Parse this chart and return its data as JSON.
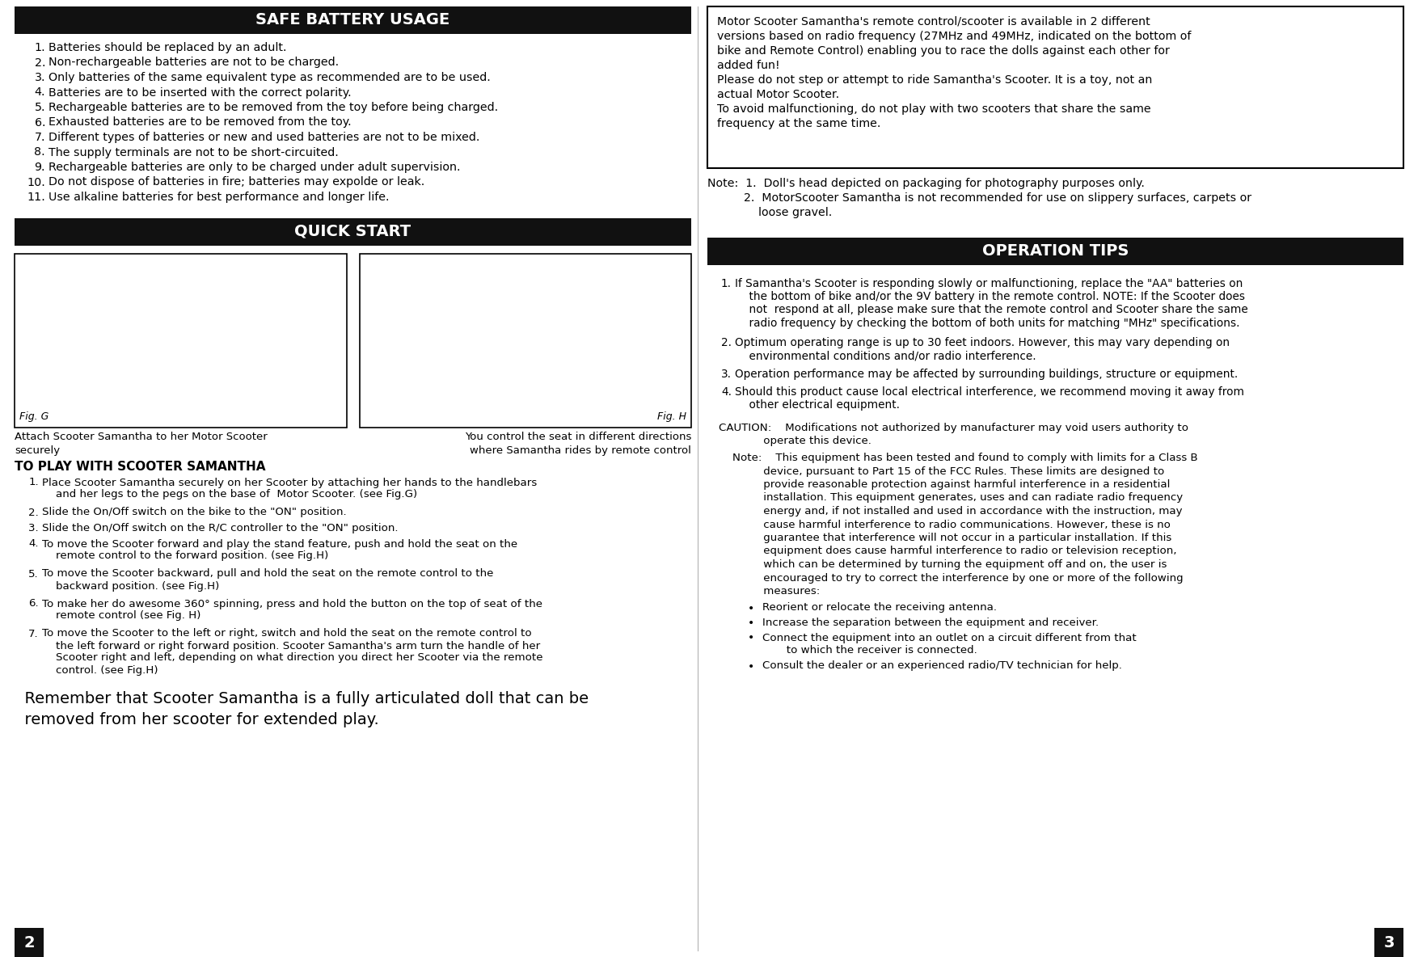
{
  "bg_color": "#ffffff",
  "header_bg": "#111111",
  "header_fg": "#ffffff",
  "body_fg": "#000000",
  "safe_battery_title": "SAFE BATTERY USAGE",
  "safe_battery_items": [
    "Batteries should be replaced by an adult.",
    "Non-rechargeable batteries are not to be charged.",
    "Only batteries of the same equivalent type as recommended are to be used.",
    "Batteries are to be inserted with the correct polarity.",
    "Rechargeable batteries are to be removed from the toy before being charged.",
    "Exhausted batteries are to be removed from the toy.",
    "Different types of batteries or new and used batteries are not to be mixed.",
    "The supply terminals are not to be short-circuited.",
    "Rechargeable batteries are only to be charged under adult supervision.",
    "Do not dispose of batteries in fire; batteries may expolde or leak.",
    "Use alkaline batteries for best performance and longer life."
  ],
  "quick_start_title": "QUICK START",
  "fig_g_label": "Fig. G",
  "fig_h_label": "Fig. H",
  "fig_g_caption": "Attach Scooter Samantha to her Motor Scooter\nsecurely",
  "fig_h_caption": "You control the seat in different directions\nwhere Samantha rides by remote control",
  "to_play_title": "TO PLAY WITH SCOOTER SAMANTHA",
  "to_play_items": [
    "Place Scooter Samantha securely on her Scooter by attaching her hands to the handlebars\n    and her legs to the pegs on the base of  Motor Scooter. (see Fig.G)",
    "Slide the On/Off switch on the bike to the \"ON\" position.",
    "Slide the On/Off switch on the R/C controller to the \"ON\" position.",
    "To move the Scooter forward and play the stand feature, push and hold the seat on the\n    remote control to the forward position. (see Fig.H)",
    "To move the Scooter backward, pull and hold the seat on the remote control to the\n    backward position. (see Fig.H)",
    "To make her do awesome 360° spinning, press and hold the button on the top of seat of the\n    remote control (see Fig. H)",
    "To move the Scooter to the left or right, switch and hold the seat on the remote control to\n    the left forward or right forward position. Scooter Samantha's arm turn the handle of her\n    Scooter right and left, depending on what direction you direct her Scooter via the remote\n    control. (see Fig.H)"
  ],
  "remember_text": "  Remember that Scooter Samantha is a fully articulated doll that can be\n  removed from her scooter for extended play.",
  "right_box_lines": [
    "Motor Scooter Samantha's remote control/scooter is available in 2 different",
    "versions based on radio frequency (27MHz and 49MHz, indicated on the bottom of",
    "bike and Remote Control) enabling you to race the dolls against each other for",
    "added fun!",
    "Please do not step or attempt to ride Samantha's Scooter. It is a toy, not an",
    "actual Motor Scooter.",
    "To avoid malfunctioning, do not play with two scooters that share the same",
    "frequency at the same time."
  ],
  "note_lines": [
    "Note:  1.  Doll's head depicted on packaging for photography purposes only.",
    "          2.  MotorScooter Samantha is not recommended for use on slippery surfaces, carpets or",
    "              loose gravel."
  ],
  "operation_tips_title": "OPERATION TIPS",
  "operation_tips_items": [
    "If Samantha's Scooter is responding slowly or malfunctioning, replace the \"AA\" batteries on\n    the bottom of bike and/or the 9V battery in the remote control. NOTE: If the Scooter does\n    not  respond at all, please make sure that the remote control and Scooter share the same\n    radio frequency by checking the bottom of both units for matching \"MHz\" specifications.",
    "Optimum operating range is up to 30 feet indoors. However, this may vary depending on\n    environmental conditions and/or radio interference.",
    "Operation performance may be affected by surrounding buildings, structure or equipment.",
    "Should this product cause local electrical interference, we recommend moving it away from\n    other electrical equipment."
  ],
  "caution_lines": [
    "CAUTION:    Modifications not authorized by manufacturer may void users authority to",
    "             operate this device."
  ],
  "note2_lines": [
    "    Note:    This equipment has been tested and found to comply with limits for a Class B",
    "             device, pursuant to Part 15 of the FCC Rules. These limits are designed to",
    "             provide reasonable protection against harmful interference in a residential",
    "             installation. This equipment generates, uses and can radiate radio frequency",
    "             energy and, if not installed and used in accordance with the instruction, may",
    "             cause harmful interference to radio communications. However, these is no",
    "             guarantee that interference will not occur in a particular installation. If this",
    "             equipment does cause harmful interference to radio or television reception,",
    "             which can be determined by turning the equipment off and on, the user is",
    "             encouraged to try to correct the interference by one or more of the following",
    "             measures:"
  ],
  "bullet_items": [
    "Reorient or relocate the receiving antenna.",
    "Increase the separation between the equipment and receiver.",
    "Connect the equipment into an outlet on a circuit different from that\n       to which the receiver is connected.",
    "Consult the dealer or an experienced radio/TV technician for help."
  ],
  "page_num_left": "2",
  "page_num_right": "3",
  "page_num_bg": "#111111",
  "page_num_fg": "#ffffff"
}
